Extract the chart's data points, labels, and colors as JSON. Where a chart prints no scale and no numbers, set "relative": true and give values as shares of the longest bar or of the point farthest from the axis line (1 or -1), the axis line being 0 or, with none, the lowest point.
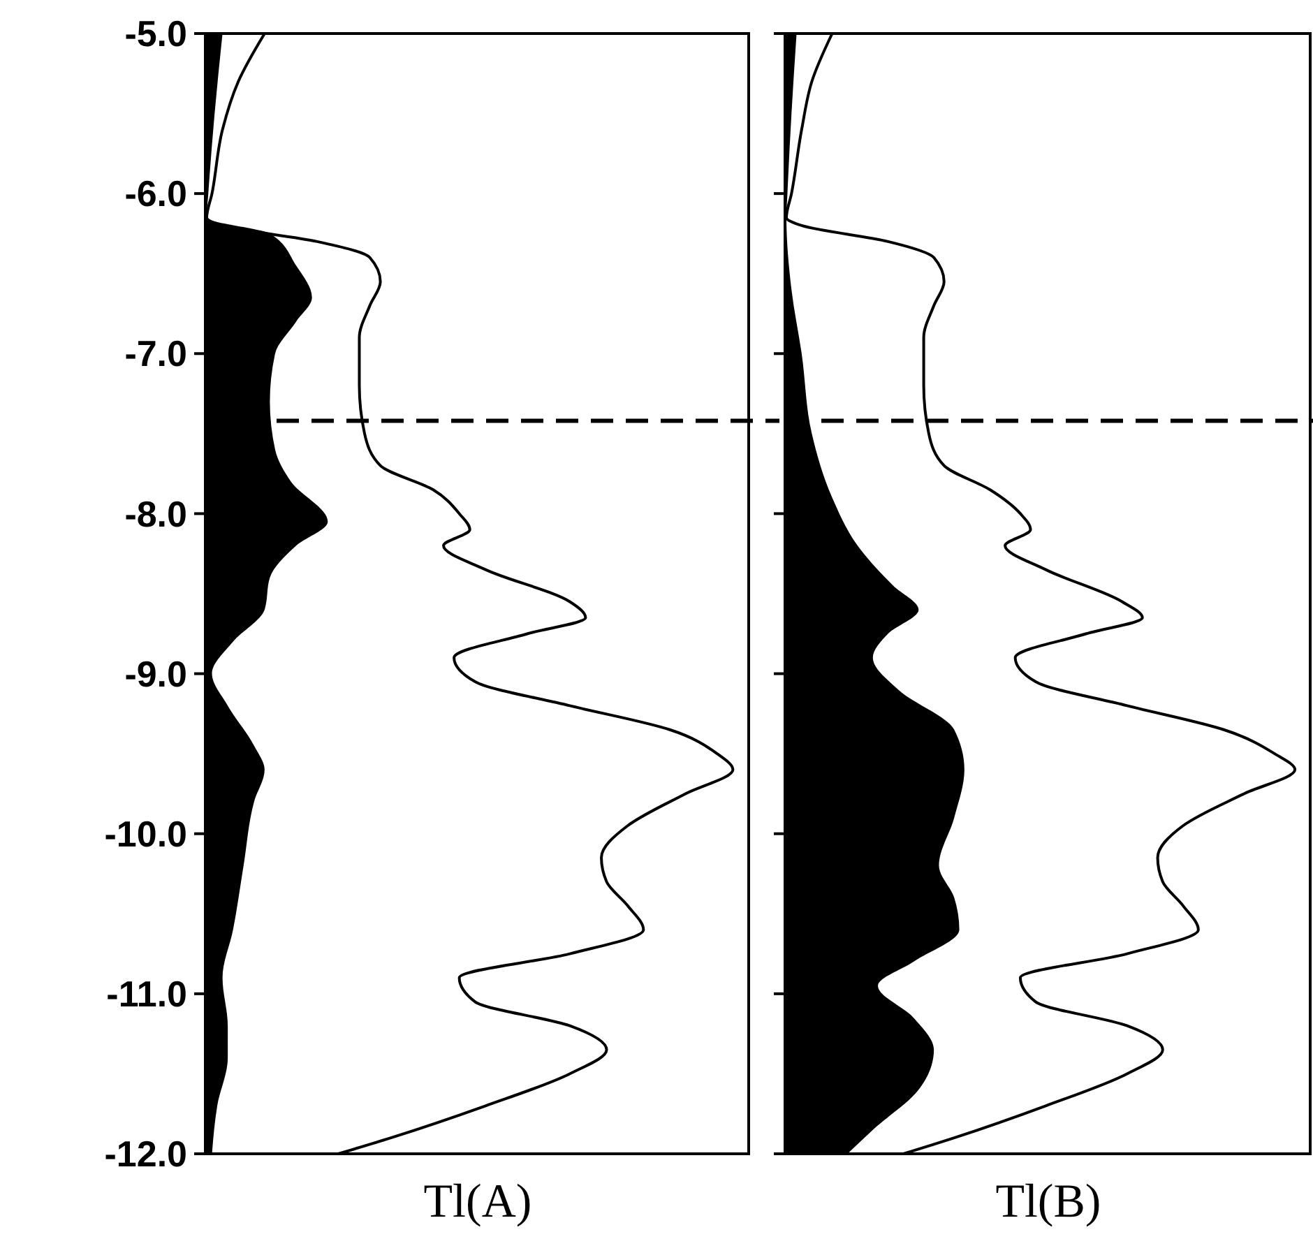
{
  "chart_data": [
    {
      "type": "area",
      "orientation": "horizontal",
      "relative": true,
      "xlabel": "Tl(A)",
      "ylim": [
        -12,
        -5
      ],
      "yticks": [
        {
          "value": -5,
          "label": "-5.0"
        },
        {
          "value": -6,
          "label": "-6.0"
        },
        {
          "value": -7,
          "label": "-7.0"
        },
        {
          "value": -8,
          "label": "-8.0"
        },
        {
          "value": -9,
          "label": "-9.0"
        },
        {
          "value": -10,
          "label": "-10.0"
        },
        {
          "value": -11,
          "label": "-11.0"
        },
        {
          "value": -12,
          "label": "-12.0"
        }
      ],
      "tick_labels": "y",
      "grid": false,
      "ref_lines": [
        {
          "axis": "y",
          "value": -7.42,
          "line_style": "dashed",
          "color": "#000000"
        }
      ],
      "series": [
        {
          "type": "line",
          "color": "#000000",
          "x": [
            -5.0,
            -5.3,
            -5.6,
            -6.0,
            -6.15,
            -6.2,
            -6.3,
            -6.4,
            -6.55,
            -6.7,
            -6.9,
            -7.2,
            -7.5,
            -7.7,
            -7.85,
            -8.0,
            -8.1,
            -8.2,
            -8.35,
            -8.55,
            -8.65,
            -8.75,
            -8.9,
            -9.05,
            -9.2,
            -9.35,
            -9.5,
            -9.6,
            -9.75,
            -9.95,
            -10.15,
            -10.3,
            -10.45,
            -10.6,
            -10.75,
            -10.9,
            -11.05,
            -11.2,
            -11.35,
            -11.5,
            -11.7,
            -11.9,
            -12.0
          ],
          "values": [
            0.11,
            0.06,
            0.03,
            0.01,
            0,
            0.03,
            0.21,
            0.31,
            0.33,
            0.31,
            0.29,
            0.29,
            0.3,
            0.33,
            0.43,
            0.48,
            0.5,
            0.45,
            0.53,
            0.69,
            0.72,
            0.61,
            0.47,
            0.51,
            0.69,
            0.88,
            0.97,
            1.0,
            0.91,
            0.8,
            0.75,
            0.76,
            0.8,
            0.83,
            0.69,
            0.48,
            0.51,
            0.69,
            0.76,
            0.69,
            0.53,
            0.35,
            0.25
          ]
        },
        {
          "color": "#000000",
          "x": [
            -5.0,
            -5.5,
            -6.0,
            -6.15,
            -6.25,
            -6.45,
            -6.65,
            -6.8,
            -7.0,
            -7.3,
            -7.6,
            -7.8,
            -8.05,
            -8.2,
            -8.4,
            -8.6,
            -8.8,
            -9.0,
            -9.2,
            -9.45,
            -9.6,
            -9.8,
            -10.2,
            -10.6,
            -10.9,
            -11.2,
            -11.4,
            -11.7,
            -12.0
          ],
          "values": [
            0.03,
            0.015,
            0.003,
            0,
            0.12,
            0.17,
            0.2,
            0.17,
            0.13,
            0.12,
            0.13,
            0.16,
            0.23,
            0.17,
            0.12,
            0.11,
            0.05,
            0.01,
            0.04,
            0.09,
            0.11,
            0.09,
            0.07,
            0.05,
            0.03,
            0.04,
            0.04,
            0.02,
            0.01
          ]
        }
      ]
    },
    {
      "type": "area",
      "orientation": "horizontal",
      "relative": true,
      "xlabel": "Tl(B)",
      "ylim": [
        -12,
        -5
      ],
      "yticks": [
        {
          "value": -5,
          "label": null
        },
        {
          "value": -6,
          "label": null
        },
        {
          "value": -7,
          "label": null
        },
        {
          "value": -8,
          "label": null
        },
        {
          "value": -9,
          "label": null
        },
        {
          "value": -10,
          "label": null
        },
        {
          "value": -11,
          "label": null
        },
        {
          "value": -12,
          "label": null
        }
      ],
      "tick_labels": false,
      "grid": false,
      "ref_lines": [
        {
          "axis": "y",
          "value": -7.42,
          "line_style": "dashed",
          "color": "#000000"
        }
      ],
      "series": [
        {
          "type": "line",
          "color": "#000000",
          "x": [
            -5.0,
            -5.3,
            -5.6,
            -6.0,
            -6.15,
            -6.2,
            -6.3,
            -6.4,
            -6.55,
            -6.7,
            -6.9,
            -7.2,
            -7.5,
            -7.7,
            -7.85,
            -8.0,
            -8.1,
            -8.2,
            -8.35,
            -8.55,
            -8.65,
            -8.75,
            -8.9,
            -9.05,
            -9.2,
            -9.35,
            -9.5,
            -9.6,
            -9.75,
            -9.95,
            -10.15,
            -10.3,
            -10.45,
            -10.6,
            -10.75,
            -10.9,
            -11.05,
            -11.2,
            -11.35,
            -11.5,
            -11.7,
            -11.9,
            -12.0
          ],
          "values": [
            0.09,
            0.05,
            0.03,
            0.01,
            0,
            0.03,
            0.2,
            0.29,
            0.31,
            0.29,
            0.27,
            0.27,
            0.28,
            0.31,
            0.4,
            0.46,
            0.48,
            0.43,
            0.51,
            0.66,
            0.7,
            0.59,
            0.45,
            0.49,
            0.67,
            0.86,
            0.96,
            1.0,
            0.9,
            0.78,
            0.73,
            0.74,
            0.78,
            0.81,
            0.67,
            0.46,
            0.49,
            0.67,
            0.74,
            0.67,
            0.51,
            0.33,
            0.23
          ]
        },
        {
          "color": "#000000",
          "x": [
            -5.0,
            -5.5,
            -6.0,
            -6.15,
            -6.6,
            -7.0,
            -7.5,
            -7.9,
            -8.2,
            -8.45,
            -8.6,
            -8.75,
            -8.9,
            -9.1,
            -9.35,
            -9.6,
            -9.9,
            -10.2,
            -10.4,
            -10.6,
            -10.8,
            -10.95,
            -11.15,
            -11.35,
            -11.6,
            -11.85,
            -12.0
          ],
          "values": [
            0.02,
            0.01,
            0.002,
            0,
            0.01,
            0.03,
            0.05,
            0.09,
            0.14,
            0.21,
            0.26,
            0.2,
            0.17,
            0.22,
            0.33,
            0.35,
            0.33,
            0.3,
            0.33,
            0.34,
            0.25,
            0.18,
            0.25,
            0.29,
            0.26,
            0.17,
            0.12
          ]
        }
      ]
    }
  ]
}
